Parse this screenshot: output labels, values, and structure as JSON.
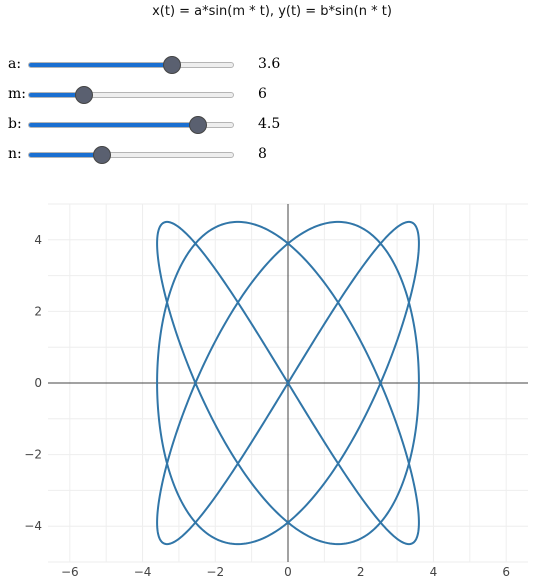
{
  "title": "x(t) = a*sin(m * t), y(t) = b*sin(n * t)",
  "sliders": [
    {
      "label": "a:",
      "value": "3.6",
      "fraction": 0.7
    },
    {
      "label": "m:",
      "value": "6",
      "fraction": 0.27
    },
    {
      "label": "b:",
      "value": "4.5",
      "fraction": 0.83
    },
    {
      "label": "n:",
      "value": "8",
      "fraction": 0.36
    }
  ],
  "colors": {
    "curve": "#3176a8",
    "slider_fill": "#1a6fd1",
    "slider_thumb": "#5a6070",
    "grid": "#eeeeee",
    "axis": "#444444"
  },
  "chart_data": {
    "type": "line",
    "title": "",
    "xlabel": "",
    "ylabel": "",
    "xlim": [
      -6.6,
      6.6
    ],
    "ylim": [
      -5.0,
      5.0
    ],
    "x_ticks": [
      -6,
      -4,
      -2,
      0,
      2,
      4,
      6
    ],
    "y_ticks": [
      -4,
      -2,
      0,
      2,
      4
    ],
    "x_tick_labels": [
      "−6",
      "−4",
      "−2",
      "0",
      "2",
      "4",
      "6"
    ],
    "y_tick_labels": [
      "−4",
      "−2",
      "0",
      "2",
      "4"
    ],
    "grid": true,
    "series": [
      {
        "parametric": "lissajous",
        "a": 3.6,
        "m": 6,
        "b": 4.5,
        "n": 8,
        "t_range": [
          0,
          6.2832
        ]
      }
    ]
  }
}
